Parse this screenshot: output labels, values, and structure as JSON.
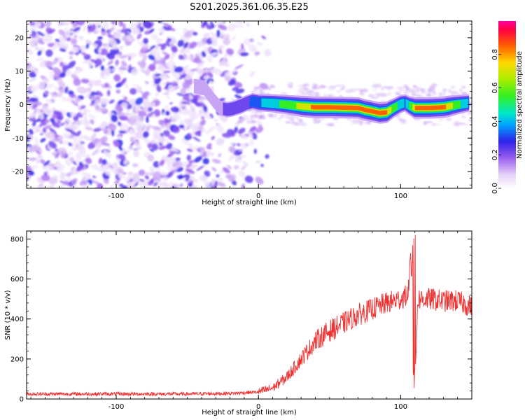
{
  "title": "S201.2025.361.06.35.E25",
  "chart_data": [
    {
      "type": "heatmap",
      "name": "spectrogram",
      "xlabel": "Height of straight line (km)",
      "ylabel": "Frequency (Hz)",
      "xlim": [
        -163,
        150
      ],
      "ylim": [
        -25,
        25
      ],
      "xticks": [
        -100,
        0,
        100
      ],
      "yticks": [
        -20,
        -10,
        0,
        10,
        20
      ],
      "colorbar": {
        "label": "Normalized spectral amplitude",
        "range": [
          0,
          1
        ],
        "ticks": [
          0.0,
          0.2,
          0.4,
          0.6,
          0.8
        ],
        "tick_labels": [
          "0.0",
          "0.2",
          "0.4",
          "0.6",
          "0.8"
        ]
      },
      "ridge": {
        "x": [
          -45,
          -38,
          -32,
          -27,
          -22,
          -18,
          -12,
          -8,
          -4,
          0,
          10,
          20,
          30,
          40,
          50,
          60,
          70,
          75,
          80,
          85,
          90,
          95,
          100,
          103,
          106,
          110,
          120,
          130,
          140,
          148
        ],
        "y": [
          5.5,
          5.0,
          1.5,
          -1.0,
          -1.5,
          -1.2,
          -0.3,
          0.5,
          1.0,
          0.6,
          0.4,
          0.0,
          -0.5,
          -0.8,
          -0.8,
          -0.9,
          -1.0,
          -1.6,
          -2.0,
          -2.5,
          -2.3,
          -1.0,
          0.2,
          0.5,
          -0.3,
          -1.0,
          -1.0,
          -0.8,
          0.0,
          0.5
        ],
        "amplitude": [
          0.15,
          0.2,
          0.2,
          0.2,
          0.25,
          0.25,
          0.3,
          0.3,
          0.35,
          0.4,
          0.5,
          0.6,
          0.75,
          0.9,
          0.95,
          0.9,
          0.85,
          0.95,
          0.9,
          0.95,
          0.85,
          0.6,
          0.5,
          0.4,
          0.55,
          0.85,
          0.95,
          0.9,
          0.6,
          0.4
        ]
      }
    },
    {
      "type": "line",
      "name": "snr",
      "xlabel": "Height of straight line (km)",
      "ylabel": "SNR (10 * v/v)",
      "xlim": [
        -163,
        150
      ],
      "ylim": [
        0,
        840
      ],
      "xticks": [
        -100,
        0,
        100
      ],
      "yticks": [
        0,
        200,
        400,
        600,
        800
      ],
      "series": [
        {
          "name": "SNR",
          "color": "#ee3333",
          "x": [
            -163,
            -100,
            -50,
            -20,
            0,
            10,
            20,
            30,
            40,
            50,
            60,
            70,
            80,
            90,
            100,
            105,
            108,
            109,
            110,
            112,
            120,
            130,
            140,
            150
          ],
          "y": [
            25,
            25,
            25,
            28,
            35,
            55,
            110,
            200,
            290,
            340,
            380,
            420,
            450,
            480,
            500,
            520,
            700,
            820,
            60,
            500,
            500,
            490,
            490,
            460
          ]
        }
      ]
    }
  ]
}
